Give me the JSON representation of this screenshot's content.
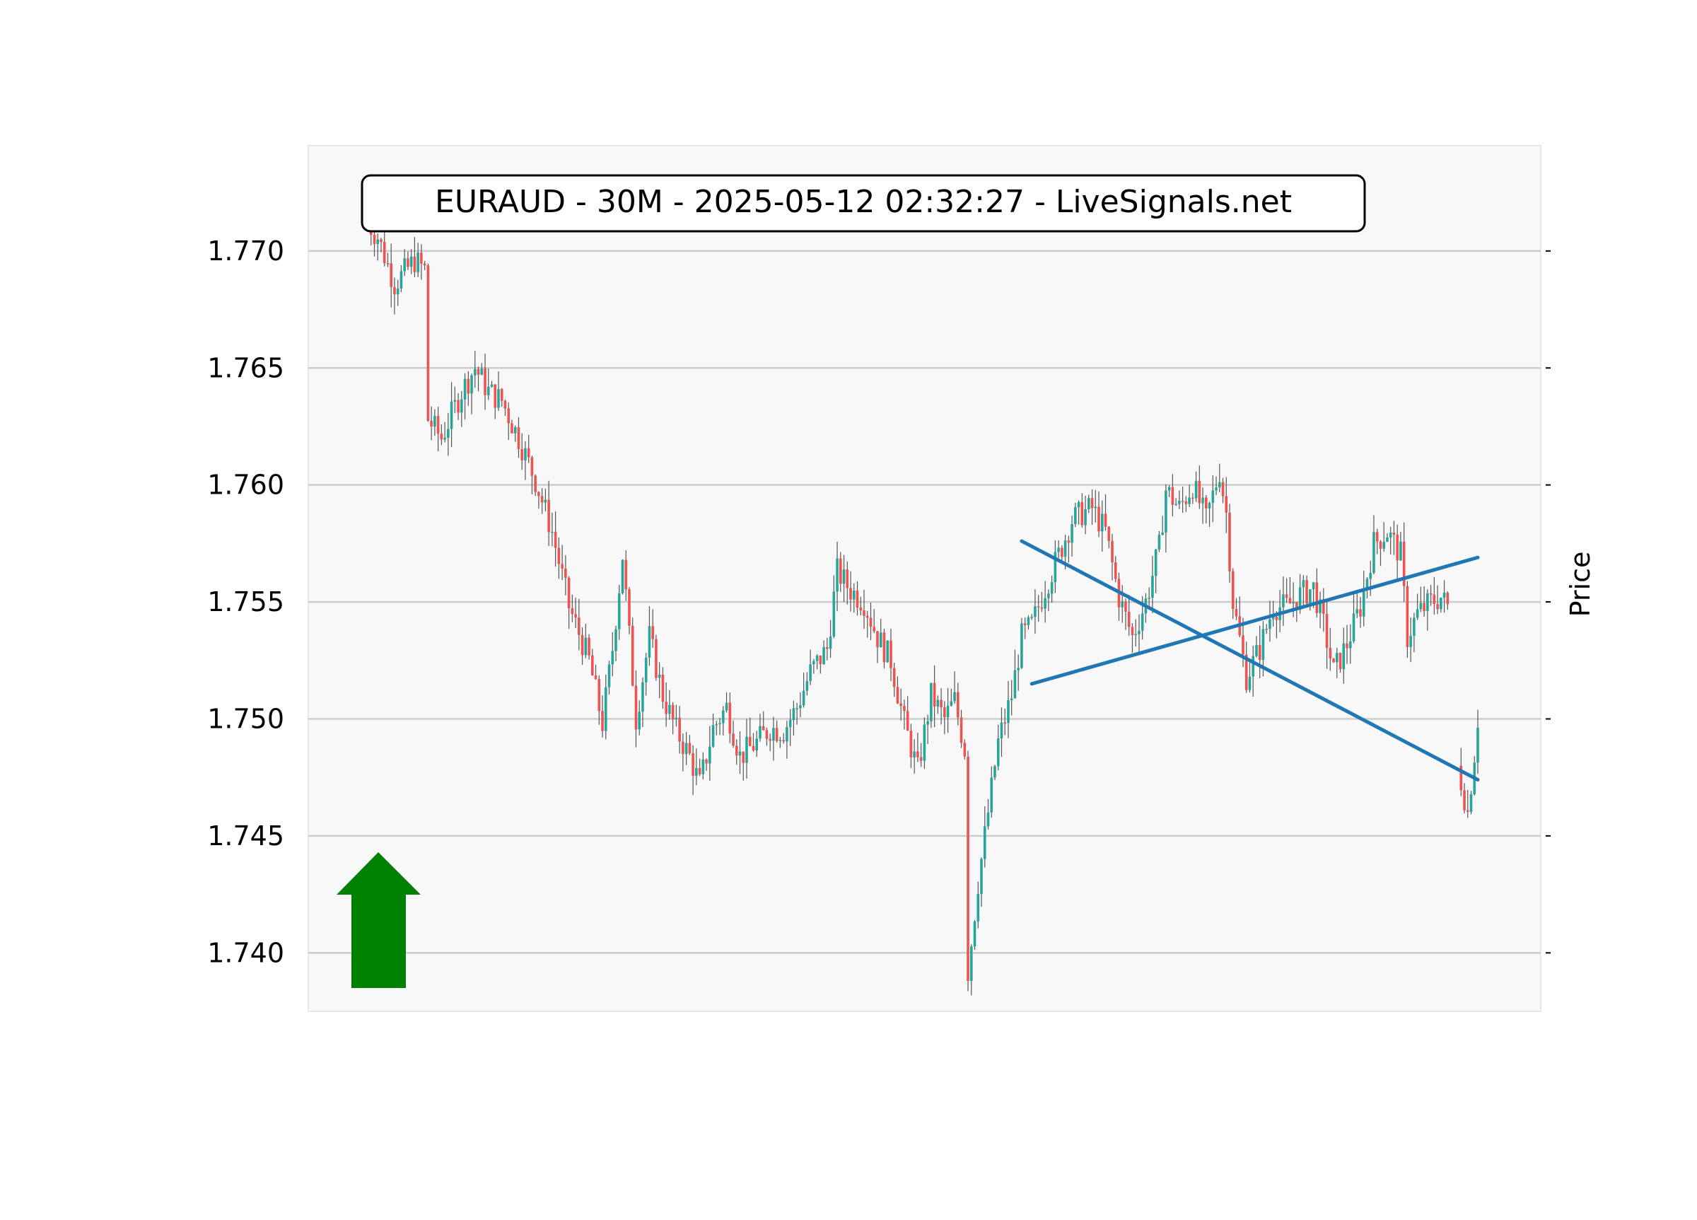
{
  "chart_data": {
    "type": "candlestick",
    "title": "EURAUD - 30M - 2025-05-12 02:32:27 - LiveSignals.net",
    "symbol": "EURAUD",
    "timeframe": "30M",
    "xlabel": "",
    "ylabel": "Price",
    "ylim": [
      1.7375,
      1.7745
    ],
    "yticks": [
      "1.740",
      "1.745",
      "1.750",
      "1.755",
      "1.760",
      "1.765",
      "1.770"
    ],
    "grid": "horizontal",
    "axis_side": "right-ticks, left-labels",
    "colors": {
      "up": "#26a69a",
      "down": "#ef5350",
      "wick": "#555555",
      "trendline": "#1f77b4",
      "arrow": "#008000",
      "plot_bg": "#f8f8f8",
      "grid": "#cccccc"
    },
    "signal": {
      "direction": "up",
      "color": "#008000"
    },
    "close_path": [
      [
        0,
        1.7712
      ],
      [
        3,
        1.7706
      ],
      [
        8,
        1.7686
      ],
      [
        14,
        1.7696
      ],
      [
        17,
        1.7692
      ],
      [
        18,
        1.7628
      ],
      [
        22,
        1.762
      ],
      [
        28,
        1.764
      ],
      [
        32,
        1.765
      ],
      [
        36,
        1.764
      ],
      [
        40,
        1.7636
      ],
      [
        45,
        1.762
      ],
      [
        50,
        1.7602
      ],
      [
        55,
        1.758
      ],
      [
        60,
        1.7548
      ],
      [
        66,
        1.7525
      ],
      [
        70,
        1.7498
      ],
      [
        73,
        1.753
      ],
      [
        76,
        1.757
      ],
      [
        80,
        1.75
      ],
      [
        84,
        1.7535
      ],
      [
        88,
        1.751
      ],
      [
        92,
        1.7495
      ],
      [
        96,
        1.7484
      ],
      [
        99,
        1.7472
      ],
      [
        103,
        1.7496
      ],
      [
        107,
        1.7505
      ],
      [
        111,
        1.7484
      ],
      [
        116,
        1.749
      ],
      [
        120,
        1.7496
      ],
      [
        124,
        1.7495
      ],
      [
        128,
        1.7505
      ],
      [
        132,
        1.752
      ],
      [
        137,
        1.753
      ],
      [
        140,
        1.7563
      ],
      [
        144,
        1.7555
      ],
      [
        148,
        1.755
      ],
      [
        152,
        1.7535
      ],
      [
        156,
        1.7525
      ],
      [
        160,
        1.7498
      ],
      [
        164,
        1.7478
      ],
      [
        168,
        1.751
      ],
      [
        172,
        1.75
      ],
      [
        175,
        1.7508
      ],
      [
        178,
        1.7487
      ],
      [
        179,
        1.7392
      ],
      [
        182,
        1.743
      ],
      [
        185,
        1.746
      ],
      [
        188,
        1.749
      ],
      [
        192,
        1.751
      ],
      [
        195,
        1.7535
      ],
      [
        198,
        1.754
      ],
      [
        202,
        1.7556
      ],
      [
        206,
        1.757
      ],
      [
        210,
        1.7585
      ],
      [
        213,
        1.7588
      ],
      [
        216,
        1.759
      ],
      [
        220,
        1.758
      ],
      [
        224,
        1.7552
      ],
      [
        228,
        1.7535
      ],
      [
        232,
        1.755
      ],
      [
        236,
        1.7573
      ],
      [
        238,
        1.7598
      ],
      [
        242,
        1.759
      ],
      [
        246,
        1.76
      ],
      [
        250,
        1.7585
      ],
      [
        254,
        1.7606
      ],
      [
        256,
        1.7588
      ],
      [
        258,
        1.755
      ],
      [
        262,
        1.7518
      ],
      [
        266,
        1.753
      ],
      [
        270,
        1.7548
      ],
      [
        274,
        1.7548
      ],
      [
        278,
        1.7553
      ],
      [
        282,
        1.7556
      ],
      [
        285,
        1.754
      ],
      [
        288,
        1.752
      ],
      [
        292,
        1.7532
      ],
      [
        296,
        1.7548
      ],
      [
        300,
        1.7575
      ],
      [
        304,
        1.758
      ],
      [
        308,
        1.757
      ],
      [
        310,
        1.7535
      ],
      [
        313,
        1.7545
      ],
      [
        317,
        1.755
      ],
      [
        320,
        1.7552
      ],
      [
        322,
        1.7548
      ],
      [
        325,
        1.748
      ],
      [
        328,
        1.746
      ],
      [
        330,
        1.7485
      ],
      [
        331,
        1.75
      ]
    ],
    "trendlines": [
      {
        "from": [
          195,
          1.7576
        ],
        "to": [
          331,
          1.7474
        ]
      },
      {
        "from": [
          198,
          1.7515
        ],
        "to": [
          331,
          1.7569
        ]
      }
    ]
  }
}
